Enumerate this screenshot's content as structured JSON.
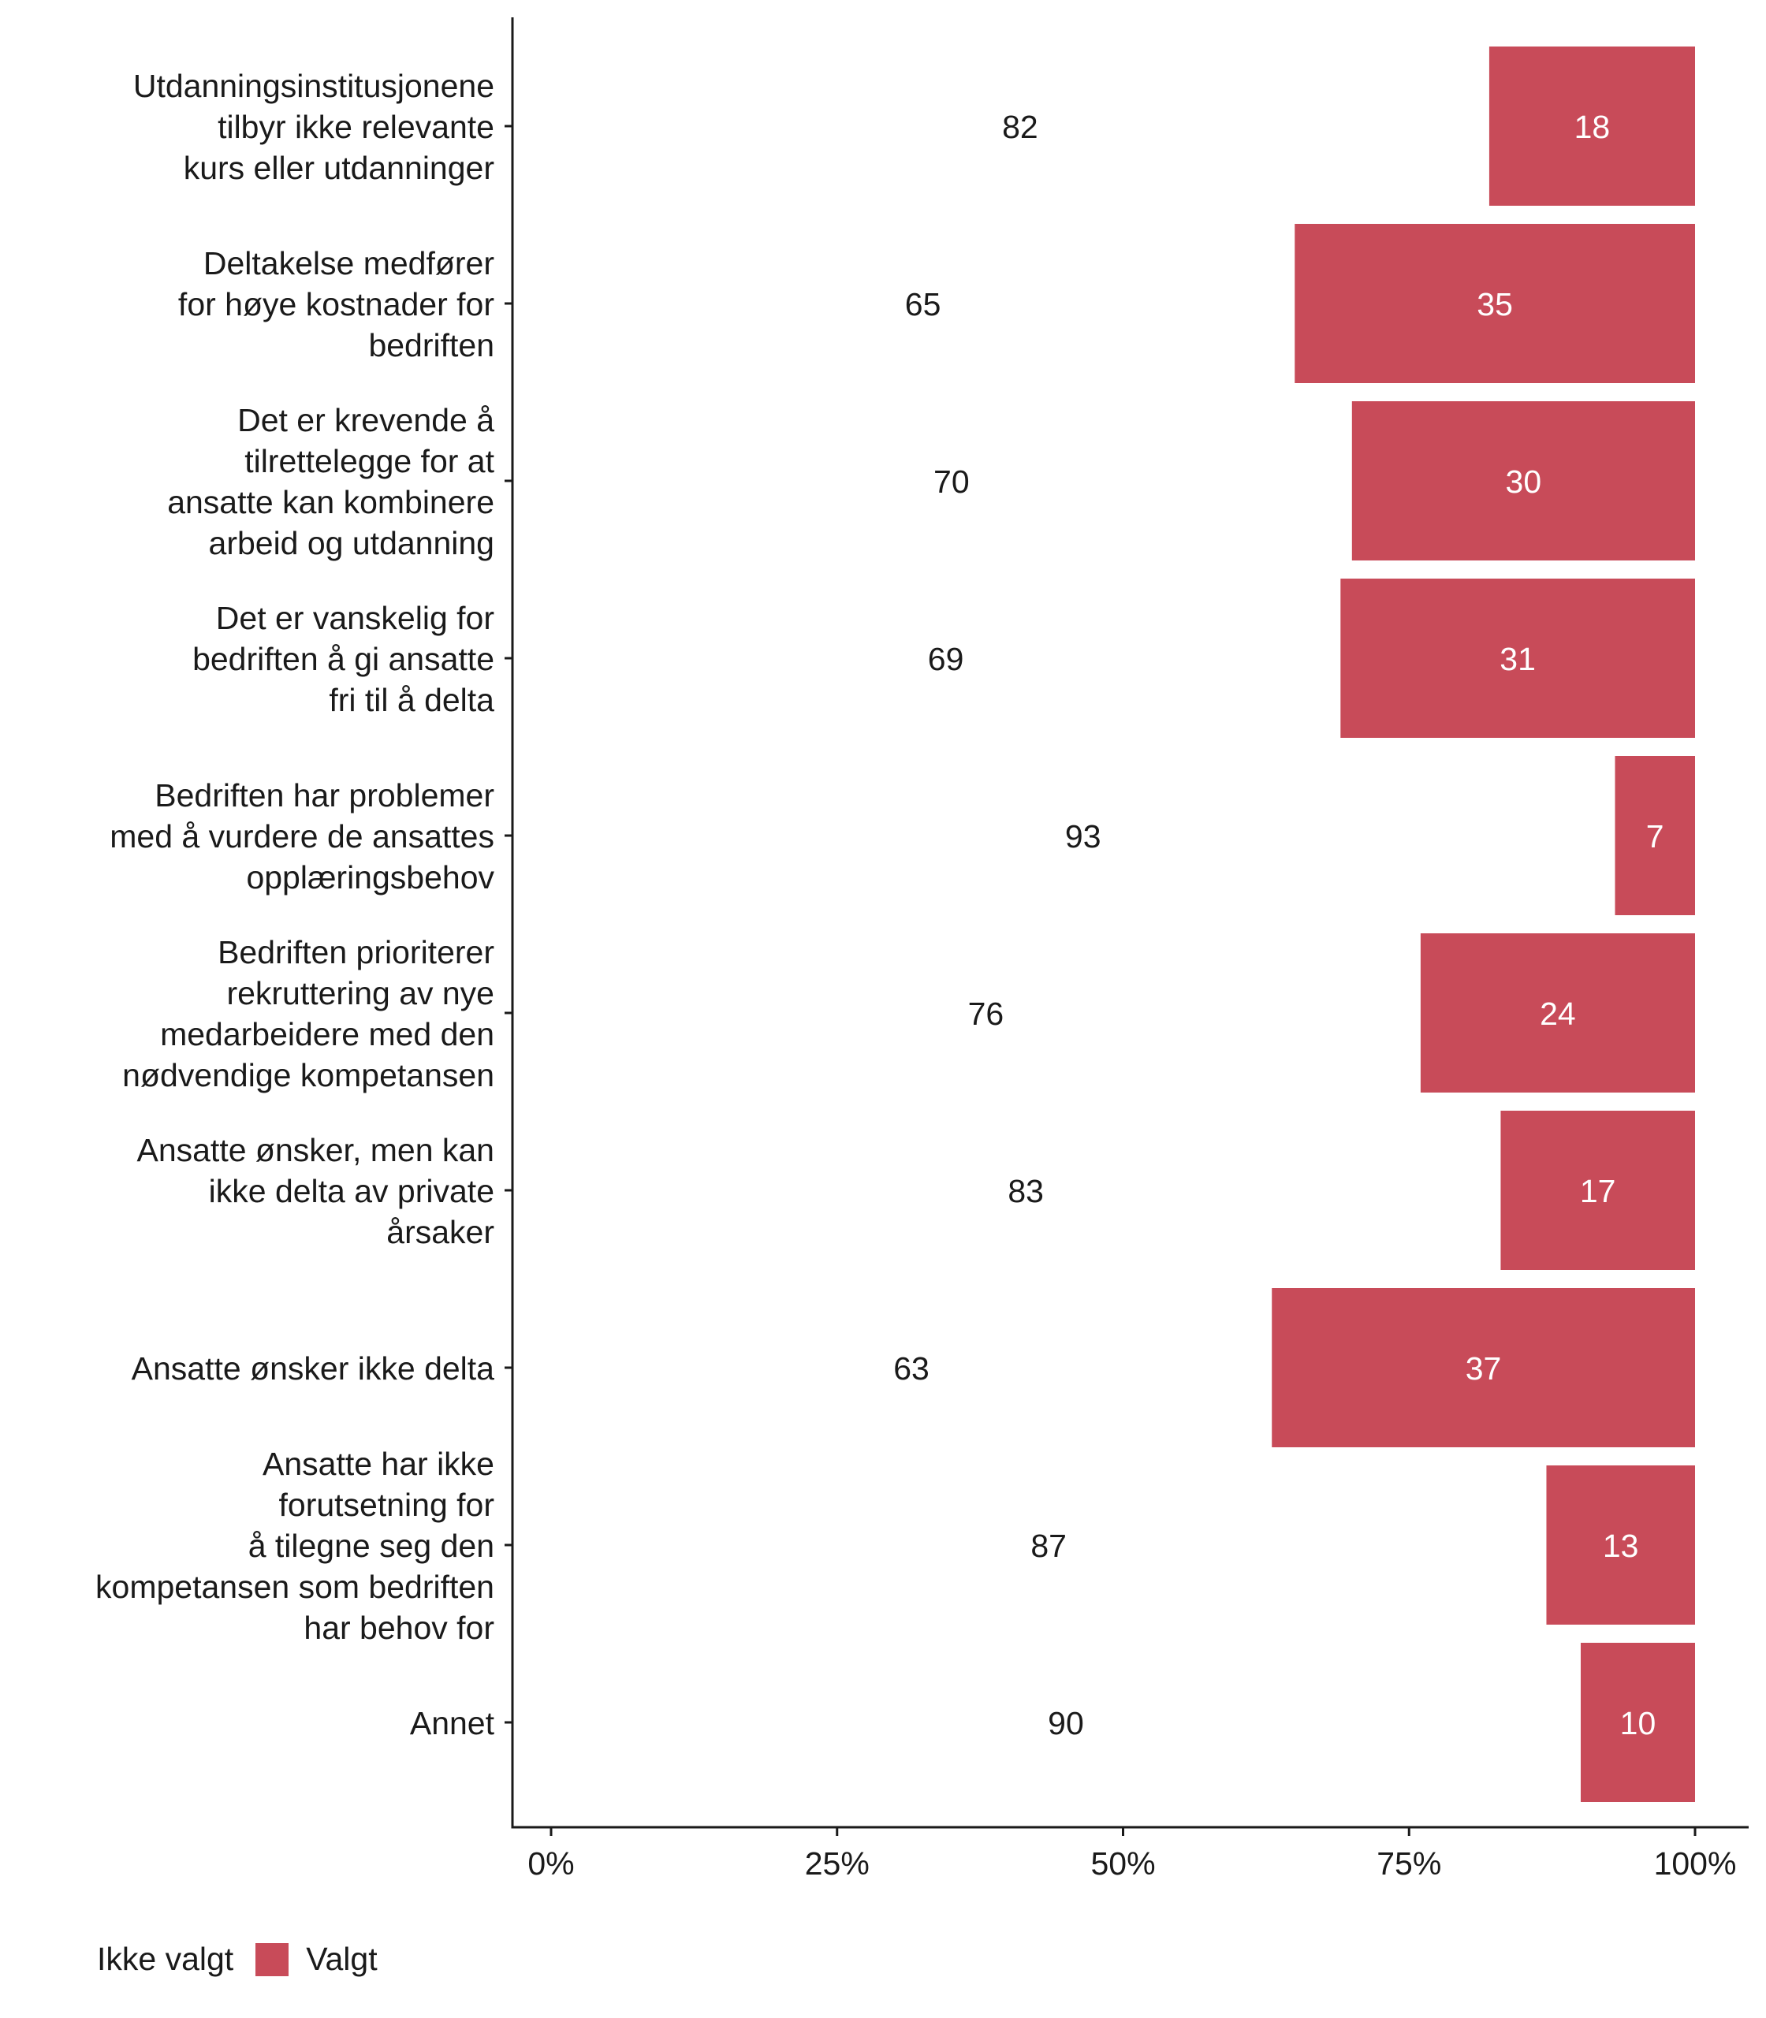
{
  "chart_data": {
    "type": "bar",
    "orientation": "horizontal",
    "stacked": true,
    "categories": [
      [
        "Utdanningsinstitusjonene",
        "tilbyr ikke relevante",
        "kurs eller utdanninger"
      ],
      [
        "Deltakelse medfører",
        "for høye kostnader for",
        "bedriften"
      ],
      [
        "Det er krevende å",
        "tilrettelegge for at",
        "ansatte kan kombinere",
        "arbeid og utdanning"
      ],
      [
        "Det er vanskelig for",
        "bedriften å gi ansatte",
        "fri til å delta"
      ],
      [
        "Bedriften har problemer",
        "med å vurdere de ansattes",
        "opplæringsbehov"
      ],
      [
        "Bedriften prioriterer",
        "rekruttering av nye",
        "medarbeidere med den",
        "nødvendige kompetansen"
      ],
      [
        "Ansatte ønsker, men kan",
        "ikke delta av private",
        "årsaker"
      ],
      [
        "Ansatte ønsker ikke delta"
      ],
      [
        "Ansatte har ikke",
        "forutsetning for",
        "å tilegne seg den",
        "kompetansen som bedriften",
        "har behov for"
      ],
      [
        "Annet"
      ]
    ],
    "series": [
      {
        "name": "Ikke valgt",
        "values": [
          82,
          65,
          70,
          69,
          93,
          76,
          83,
          63,
          87,
          90
        ],
        "color": "#ffffff",
        "label_color": "#1a1a1a"
      },
      {
        "name": "Valgt",
        "values": [
          18,
          35,
          30,
          31,
          7,
          24,
          17,
          37,
          13,
          10
        ],
        "color": "#c84b59",
        "label_color": "#ffffff"
      }
    ],
    "xlim": [
      0,
      100
    ],
    "x_ticks": [
      "0%",
      "25%",
      "50%",
      "75%",
      "100%"
    ],
    "x_tick_values": [
      0,
      25,
      50,
      75,
      100
    ],
    "xlabel": "",
    "ylabel": "",
    "title": "",
    "grid": false,
    "legend": {
      "position": "bottom-left"
    }
  }
}
